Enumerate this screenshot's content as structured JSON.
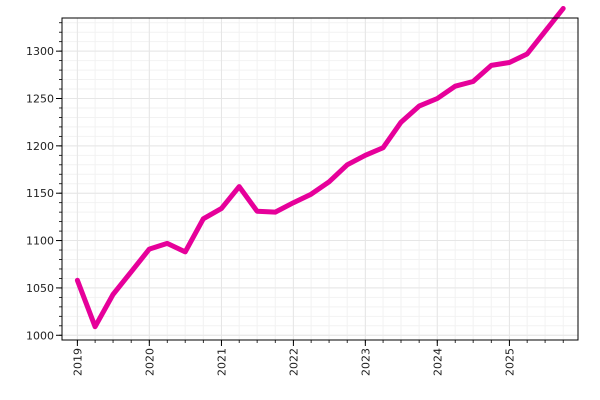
{
  "chart_data": {
    "type": "line",
    "title": "",
    "xlabel": "",
    "ylabel": "",
    "x": [
      "2019-01-01",
      "2019-04-01",
      "2019-07-01",
      "2019-10-01",
      "2020-01-01",
      "2020-04-01",
      "2020-07-01",
      "2020-10-01",
      "2021-01-01",
      "2021-04-01",
      "2021-07-01",
      "2021-10-01",
      "2022-01-01",
      "2022-04-01",
      "2022-07-01",
      "2022-10-01",
      "2023-01-01",
      "2023-04-01",
      "2023-07-01",
      "2023-10-01",
      "2024-01-01",
      "2024-04-01",
      "2024-07-01",
      "2024-10-01",
      "2025-01-01",
      "2025-04-01",
      "2025-07-01",
      "2025-10-01"
    ],
    "series": [
      {
        "name": "",
        "values": [
          1058,
          1009,
          1043,
          1067,
          1091,
          1097,
          1088,
          1123,
          1134,
          1157,
          1131,
          1130,
          1140,
          1149,
          1162,
          1180,
          1190,
          1198,
          1225,
          1242,
          1250,
          1263,
          1268,
          1285,
          1288,
          1297,
          1321,
          1345
        ]
      }
    ],
    "xticks": [
      "2019",
      "2020",
      "2021",
      "2022",
      "2023",
      "2024",
      "2025"
    ],
    "yticks": [
      1000,
      1050,
      1100,
      1150,
      1200,
      1250,
      1300
    ],
    "ylim": [
      995,
      1335
    ],
    "xlim": [
      "2018-10-15",
      "2025-12-15"
    ],
    "grid": true,
    "line_color": "#e6009a"
  }
}
